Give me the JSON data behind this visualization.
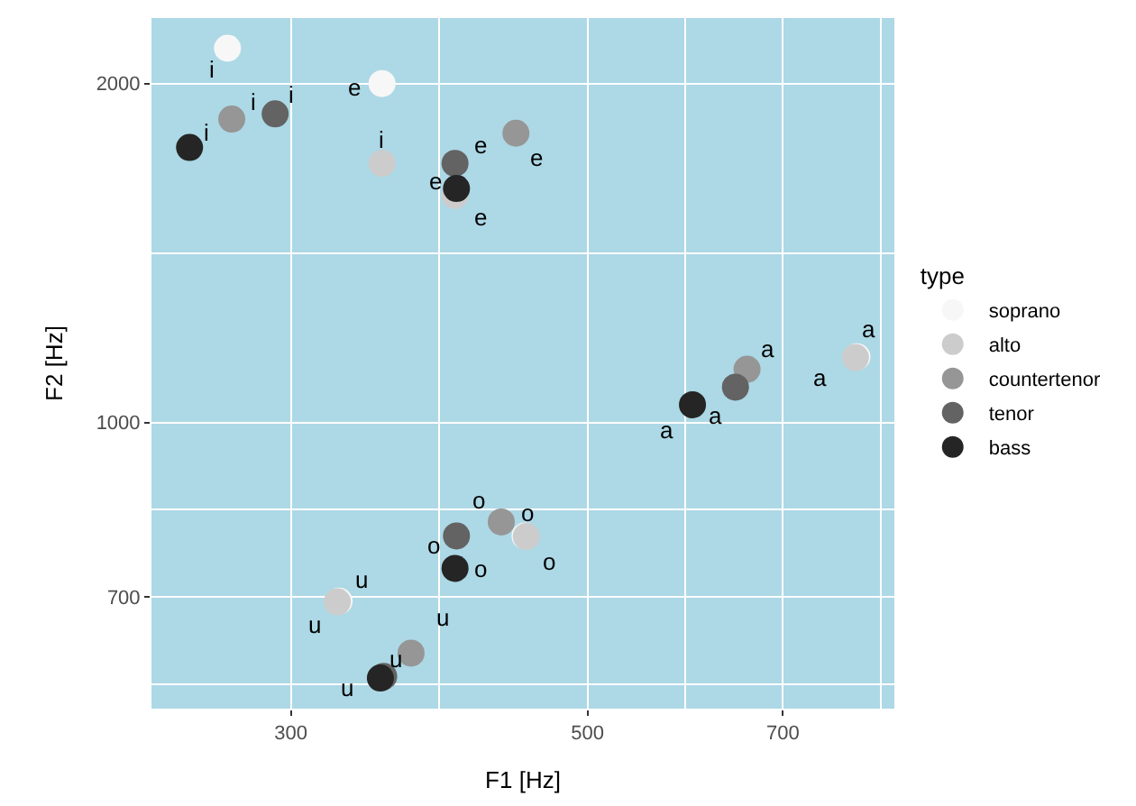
{
  "chart_data": {
    "type": "scatter",
    "xlabel": "F1 [Hz]",
    "ylabel": "F2 [Hz]",
    "legend_title": "type",
    "log": "xy",
    "grid": true,
    "legend": "right",
    "marker": "circle",
    "xlim": [
      236,
      848
    ],
    "ylim": [
      557,
      2287
    ],
    "xticks": [
      300,
      500,
      700
    ],
    "yticks": [
      700,
      1000,
      2000
    ],
    "series": [
      {
        "name": "soprano",
        "color": "#f7f7f7",
        "x": [
          269,
          351,
          795,
          449,
          326
        ],
        "values": [
          2150,
          2000,
          1144,
          793,
          694
        ],
        "value_labels": [
          "i",
          "e",
          "a",
          "o",
          "u"
        ]
      },
      {
        "name": "alto",
        "color": "#cccccc",
        "x": [
          351,
          398,
          793,
          450,
          325
        ],
        "values": [
          1699,
          1591,
          1142,
          792,
          693
        ],
        "value_labels": [
          "i",
          "e",
          "a",
          "o",
          "u"
        ]
      },
      {
        "name": "countertenor",
        "color": "#969696",
        "x": [
          271,
          442,
          658,
          431,
          369
        ],
        "values": [
          1860,
          1807,
          1115,
          816,
          624
        ],
        "value_labels": [
          "i",
          "e",
          "a",
          "o",
          "u"
        ]
      },
      {
        "name": "tenor",
        "color": "#636363",
        "x": [
          292,
          398,
          645,
          399,
          352
        ],
        "values": [
          1880,
          1699,
          1075,
          793,
          595
        ],
        "value_labels": [
          "i",
          "e",
          "a",
          "o",
          "u"
        ]
      },
      {
        "name": "bass",
        "color": "#252525",
        "x": [
          252,
          399,
          599,
          398,
          350
        ],
        "values": [
          1755,
          1614,
          1037,
          742,
          593
        ],
        "value_labels": [
          "i",
          "e",
          "a",
          "o",
          "u"
        ]
      }
    ]
  }
}
